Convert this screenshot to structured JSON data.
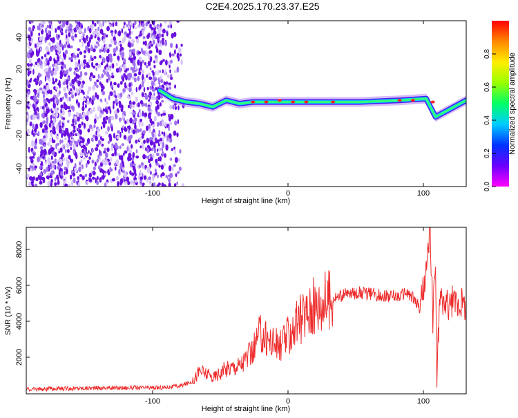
{
  "title": "C2E4.2025.170.23.37.E25",
  "colors": {
    "line": "#ee2b2b",
    "axis": "#000000",
    "background": "#ffffff",
    "colorbar": [
      "#ff00ff",
      "#6a00ff",
      "#0033ff",
      "#00ccff",
      "#00ff66",
      "#99ff00",
      "#ffee00",
      "#ff8800",
      "#ff0000"
    ]
  },
  "chart_data": [
    {
      "type": "heatmap",
      "xlabel": "Height of straight line (km)",
      "ylabel": "Frequency (Hz)",
      "xlim": [
        -200,
        130
      ],
      "ylim": [
        -50,
        50
      ],
      "xticks": [
        "-100",
        "0",
        "100"
      ],
      "yticks": [
        "40",
        "20",
        "0",
        "-20",
        "-40"
      ],
      "colorbar": {
        "label": "Normalized spectral amplitude",
        "range": [
          0,
          1
        ],
        "ticks": [
          "0.0",
          "0.2",
          "0.4",
          "0.6",
          "0.8"
        ]
      },
      "description_points": {
        "noise_region_x": [
          -200,
          -80
        ],
        "trace": [
          {
            "x": -100,
            "y": 8
          },
          {
            "x": -90,
            "y": 3
          },
          {
            "x": -80,
            "y": 1
          },
          {
            "x": -70,
            "y": 0
          },
          {
            "x": -60,
            "y": -2
          },
          {
            "x": -50,
            "y": 2
          },
          {
            "x": -40,
            "y": 0
          },
          {
            "x": -30,
            "y": 1
          },
          {
            "x": 0,
            "y": 1
          },
          {
            "x": 50,
            "y": 1
          },
          {
            "x": 80,
            "y": 2
          },
          {
            "x": 100,
            "y": 3
          },
          {
            "x": 107,
            "y": -8
          },
          {
            "x": 130,
            "y": 2
          }
        ]
      }
    },
    {
      "type": "line",
      "xlabel": "Height of straight line (km)",
      "ylabel": "SNR (10 * v/v)",
      "xlim": [
        -200,
        130
      ],
      "ylim": [
        0,
        9200
      ],
      "xticks": [
        "-100",
        "0",
        "100"
      ],
      "yticks": [
        "2000",
        "4000",
        "6000",
        "8000"
      ],
      "series": [
        {
          "x": [
            -200,
            -150,
            -100,
            -85,
            -75,
            -70,
            -65,
            -60,
            -50,
            -40,
            -30,
            -25,
            -20,
            -10,
            0,
            10,
            20,
            30,
            40,
            50,
            60,
            70,
            80,
            85,
            90,
            95,
            100,
            103,
            105,
            107,
            108,
            110,
            115,
            120,
            130
          ],
          "y": [
            250,
            320,
            340,
            420,
            700,
            1300,
            1100,
            900,
            1400,
            1600,
            2300,
            3300,
            3100,
            2600,
            3600,
            4500,
            5000,
            5300,
            5500,
            5600,
            5500,
            5400,
            5400,
            5600,
            5300,
            4800,
            6600,
            9100,
            4200,
            7400,
            700,
            5200,
            4900,
            5100,
            4900
          ]
        }
      ]
    }
  ]
}
